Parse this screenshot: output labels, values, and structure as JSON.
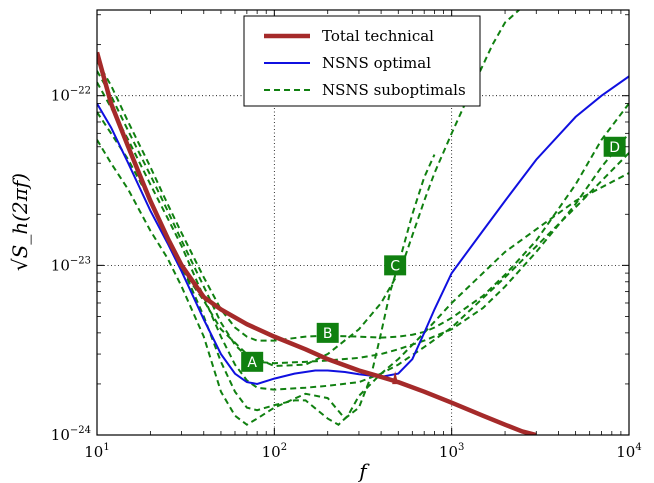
{
  "chart_data": {
    "type": "line",
    "xscale": "log",
    "yscale": "log",
    "xlim": [
      10,
      10000
    ],
    "ylim": [
      1e-24,
      3.2e-22
    ],
    "grid": true,
    "xlabel": "f",
    "ylabel": "√S_h(2πf)",
    "xticks": [
      {
        "base": "10",
        "exp": "1"
      },
      {
        "base": "10",
        "exp": "2"
      },
      {
        "base": "10",
        "exp": "3"
      },
      {
        "base": "10",
        "exp": "4"
      }
    ],
    "yticks": [
      {
        "base": "10",
        "exp": "−24"
      },
      {
        "base": "10",
        "exp": "−23"
      },
      {
        "base": "10",
        "exp": "−22"
      }
    ],
    "legend_position": "top-center",
    "colors": {
      "total": "#a52a2a",
      "optimal": "#1010e0",
      "suboptimal": "#108010"
    },
    "series": [
      {
        "name": "Total technical",
        "style": "solid-thick",
        "color": "#a52a2a",
        "x": [
          10,
          12,
          15,
          20,
          25,
          30,
          40,
          50,
          70,
          100,
          150,
          200,
          300,
          400,
          500,
          700,
          1000,
          1500,
          2000,
          2500,
          3000
        ],
        "y": [
          1.8e-22,
          9e-23,
          5e-23,
          2.4e-23,
          1.45e-23,
          1e-23,
          6.5e-24,
          5.5e-24,
          4.5e-24,
          3.8e-24,
          3.2e-24,
          2.8e-24,
          2.4e-24,
          2.2e-24,
          2.05e-24,
          1.8e-24,
          1.55e-24,
          1.3e-24,
          1.15e-24,
          1.05e-24,
          1e-24
        ]
      },
      {
        "name": "NSNS optimal",
        "style": "solid",
        "color": "#1010e0",
        "x": [
          10,
          12,
          15,
          20,
          25,
          30,
          35,
          40,
          50,
          60,
          70,
          80,
          100,
          130,
          170,
          200,
          250,
          300,
          400,
          500,
          600,
          700,
          800,
          1000,
          1500,
          2000,
          3000,
          5000,
          7000,
          10000
        ],
        "y": [
          9e-23,
          6.5e-23,
          4e-23,
          2.1e-23,
          1.35e-23,
          9.2e-24,
          6.5e-24,
          4.8e-24,
          3e-24,
          2.3e-24,
          2.05e-24,
          2e-24,
          2.15e-24,
          2.3e-24,
          2.4e-24,
          2.4e-24,
          2.35e-24,
          2.28e-24,
          2.2e-24,
          2.3e-24,
          2.8e-24,
          4e-24,
          5.5e-24,
          9e-24,
          1.6e-23,
          2.4e-23,
          4.2e-23,
          7.5e-23,
          1e-22,
          1.3e-22
        ]
      },
      {
        "name": "NSNS suboptimals",
        "style": "dashed",
        "color": "#108010",
        "curves": [
          {
            "x": [
              10,
              12,
              15,
              20,
              25,
              30,
              40,
              50,
              60,
              70,
              80,
              100,
              150,
              200,
              250,
              300,
              350,
              400,
              450,
              500,
              600,
              700,
              800
            ],
            "y": [
              5.5e-23,
              4e-23,
              2.8e-23,
              1.6e-23,
              1.1e-23,
              7.5e-24,
              3.8e-24,
              1.8e-24,
              1.3e-24,
              1.15e-24,
              1.25e-24,
              1.45e-24,
              1.75e-24,
              1.65e-24,
              1.25e-24,
              1.45e-24,
              2.2e-24,
              4e-24,
              7e-24,
              1e-23,
              2e-23,
              3.3e-23,
              4.5e-23
            ]
          },
          {
            "x": [
              10,
              12,
              15,
              20,
              25,
              30,
              40,
              50,
              60,
              70,
              80,
              100,
              130,
              150,
              200,
              230,
              260,
              300,
              400,
              500,
              700,
              1000,
              2000,
              5000,
              10000
            ],
            "y": [
              8e-23,
              6e-23,
              4.2e-23,
              2.4e-23,
              1.5e-23,
              1e-23,
              5e-24,
              2.7e-24,
              1.8e-24,
              1.45e-24,
              1.4e-24,
              1.5e-24,
              1.6e-24,
              1.6e-24,
              1.25e-24,
              1.15e-24,
              1.3e-24,
              1.7e-24,
              2.3e-24,
              2.8e-24,
              4e-24,
              6e-24,
              1.2e-23,
              2.4e-23,
              3.5e-23
            ]
          },
          {
            "x": [
              10,
              12,
              15,
              20,
              25,
              30,
              40,
              50,
              60,
              70,
              80,
              100,
              150,
              200,
              300,
              400,
              500,
              700,
              1000,
              2000,
              5000,
              10000
            ],
            "y": [
              1.2e-22,
              8.5e-23,
              5.5e-23,
              3e-23,
              1.9e-23,
              1.3e-23,
              6.5e-24,
              3.8e-24,
              2.6e-24,
              2.1e-24,
              1.9e-24,
              1.85e-24,
              1.9e-24,
              1.95e-24,
              2.05e-24,
              2.3e-24,
              2.6e-24,
              3.3e-24,
              4.3e-24,
              8.5e-24,
              2.2e-23,
              4.6e-23
            ]
          },
          {
            "x": [
              10,
              12,
              15,
              20,
              25,
              30,
              40,
              50,
              60,
              70,
              80,
              100,
              150,
              200,
              300,
              400,
              500,
              700,
              1000,
              1500,
              2000,
              3000,
              5000,
              7000,
              10000
            ],
            "y": [
              1.4e-22,
              1e-22,
              6.2e-23,
              3.4e-23,
              2.1e-23,
              1.4e-23,
              7.5e-24,
              4.6e-24,
              3.4e-24,
              2.9e-24,
              2.7e-24,
              2.65e-24,
              2.7e-24,
              2.75e-24,
              2.85e-24,
              3e-24,
              3.2e-24,
              3.6e-24,
              4.2e-24,
              5.6e-24,
              7.5e-24,
              1.2e-23,
              2.3e-23,
              3.8e-23,
              6e-23
            ]
          },
          {
            "x": [
              10,
              12,
              15,
              20,
              25,
              30,
              40,
              50,
              60,
              70,
              80,
              100,
              150,
              200,
              300,
              400,
              500,
              600,
              700,
              800,
              1000,
              1500,
              2000,
              3000,
              5000,
              7000,
              10000
            ],
            "y": [
              1.6e-22,
              1.15e-22,
              7e-23,
              3.8e-23,
              2.3e-23,
              1.55e-23,
              8.5e-24,
              5.5e-24,
              4.3e-24,
              3.8e-24,
              3.6e-24,
              3.6e-24,
              3.8e-24,
              3.85e-24,
              3.8e-24,
              3.75e-24,
              3.8e-24,
              3.9e-24,
              4.05e-24,
              4.3e-24,
              4.9e-24,
              6.6e-24,
              8.8e-24,
              1.4e-23,
              3e-23,
              5.5e-23,
              9e-23
            ]
          },
          {
            "x": [
              30,
              40,
              50,
              70,
              100,
              150,
              200,
              300,
              400,
              500,
              550,
              600,
              700,
              800,
              1000,
              1300,
              1700,
              2000,
              2400
            ],
            "y": [
              9.5e-24,
              6.2e-24,
              4.2e-24,
              3e-24,
              2.55e-24,
              2.6e-24,
              3e-24,
              4.2e-24,
              6e-24,
              9e-24,
              1.15e-23,
              1.5e-23,
              2.4e-23,
              3.5e-23,
              6e-23,
              1.1e-22,
              2e-22,
              2.7e-22,
              3.2e-22
            ]
          }
        ]
      }
    ],
    "annotations": [
      {
        "text": "A",
        "x": 75,
        "y": 2.7e-24
      },
      {
        "text": "B",
        "x": 200,
        "y": 4e-24
      },
      {
        "text": "C",
        "x": 480,
        "y": 1e-23
      },
      {
        "text": "D",
        "x": 8300,
        "y": 5e-23
      }
    ],
    "arrow_marker": {
      "x": 480,
      "y": 2.05e-24
    }
  }
}
